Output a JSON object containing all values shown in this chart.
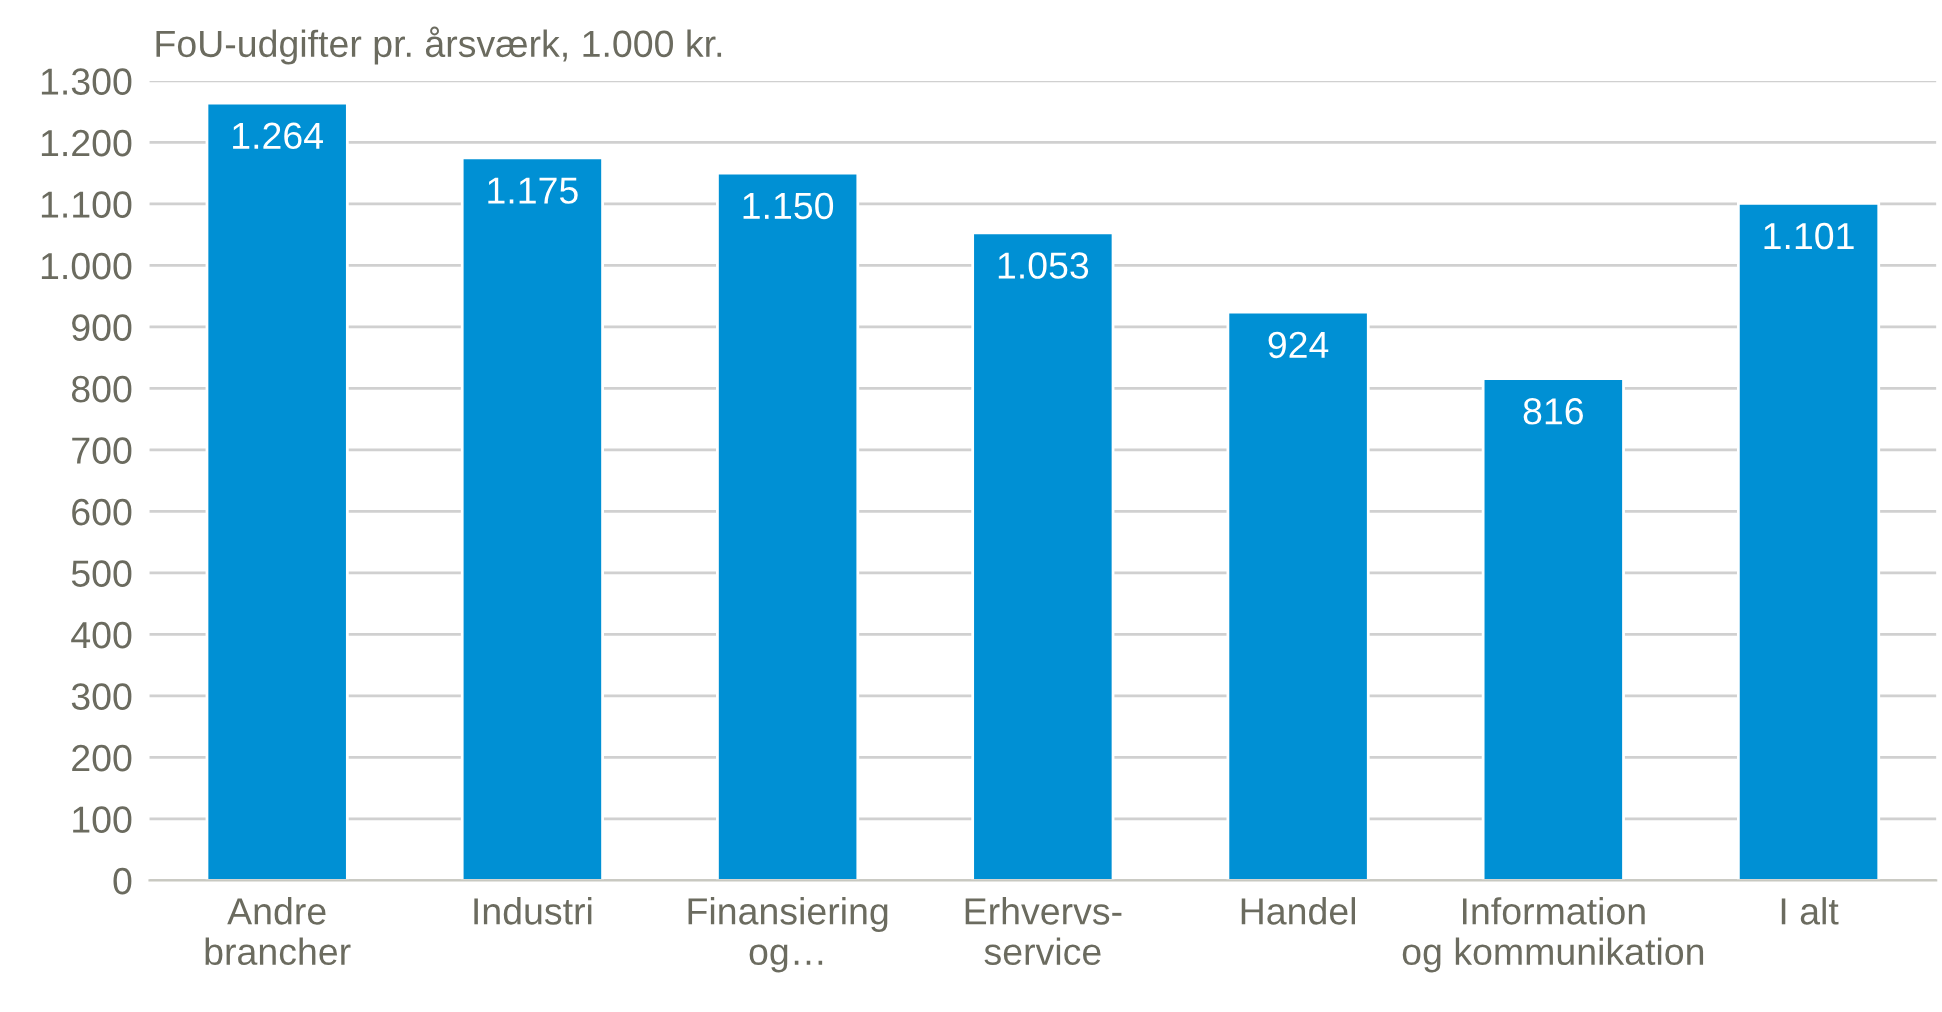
{
  "chart_data": {
    "type": "bar",
    "ylabel": "FoU-udgifter pr. årsværk, 1.000 kr.",
    "categories": [
      "Andre\nbrancher",
      "Industri",
      "Finansiering\nog…",
      "Erhvervs-\nservice",
      "Handel",
      "Information\nog kommunikation",
      "I alt"
    ],
    "values": [
      1264,
      1175,
      1150,
      1053,
      924,
      816,
      1101
    ],
    "value_labels": [
      "1.264",
      "1.175",
      "1.150",
      "1.053",
      "924",
      "816",
      "1.101"
    ],
    "color": "#0090d4",
    "ylim": [
      0,
      1300
    ],
    "yticks": [
      0,
      100,
      200,
      300,
      400,
      500,
      600,
      700,
      800,
      900,
      {
        "value": 1000,
        "label": "1.000"
      },
      {
        "value": 1100,
        "label": "1.100"
      },
      {
        "value": 1200,
        "label": "1.200"
      },
      {
        "value": 1300,
        "label": "1.300"
      }
    ],
    "grid": "y"
  }
}
